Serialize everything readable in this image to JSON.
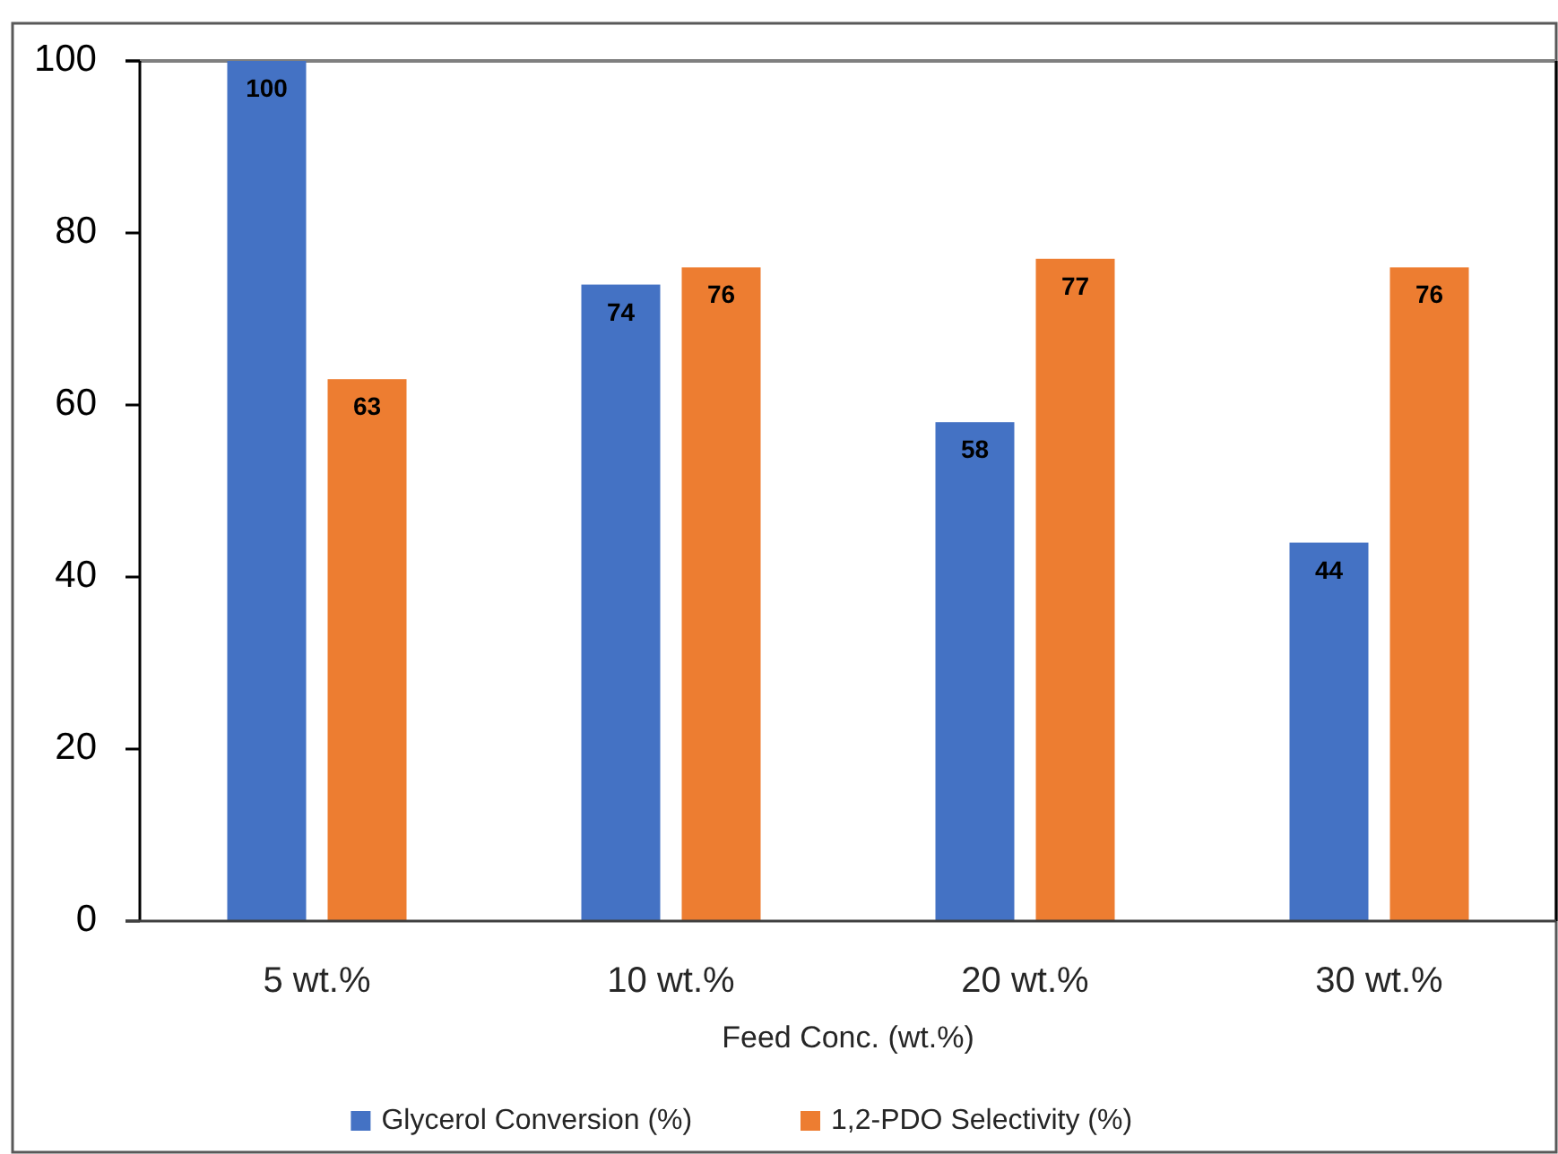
{
  "chart_data": {
    "type": "bar",
    "xlabel": "Feed Conc. (wt.%)",
    "categories": [
      "5 wt.%",
      "10 wt.%",
      "20 wt.%",
      "30 wt.%"
    ],
    "series": [
      {
        "name": "Glycerol Conversion (%)",
        "color": "#4472c4",
        "values": [
          100,
          74,
          58,
          44
        ]
      },
      {
        "name": "1,2-PDO Selectivity (%)",
        "color": "#ed7d31",
        "values": [
          63,
          76,
          77,
          76
        ]
      }
    ],
    "ylim": [
      0,
      100
    ],
    "yticks": [
      0,
      20,
      40,
      60,
      80,
      100
    ],
    "data_labels": true,
    "legend": "bottom"
  }
}
